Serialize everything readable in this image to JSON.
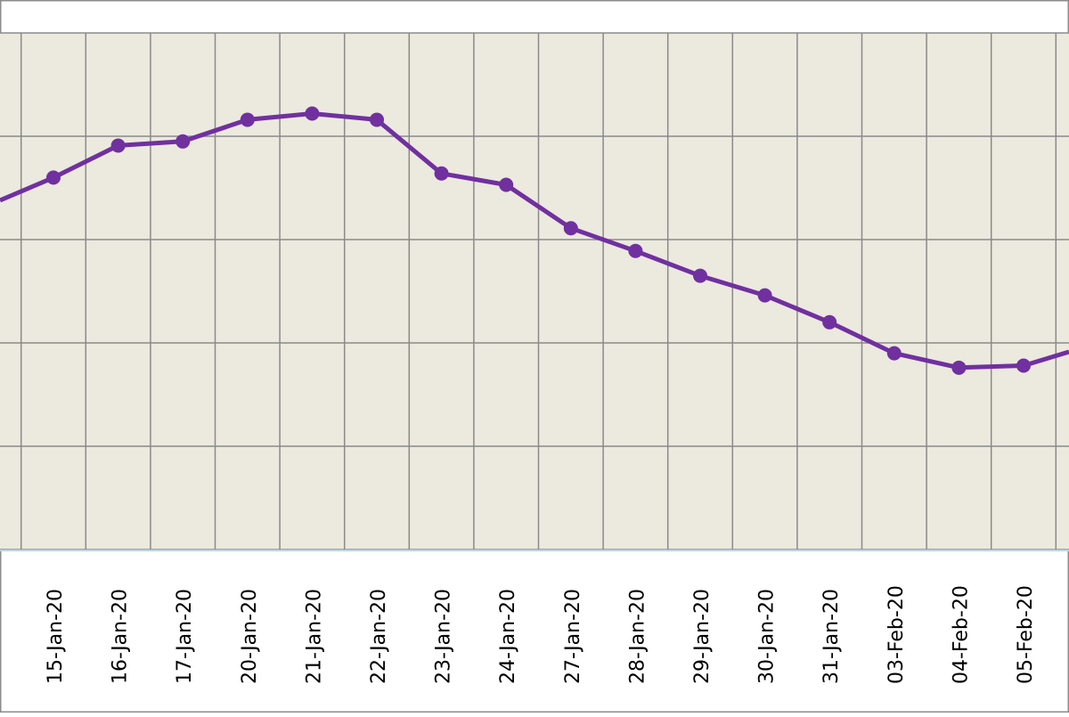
{
  "chart_data": {
    "type": "line",
    "title": "",
    "xlabel": "",
    "ylabel": "",
    "grid": true,
    "x_labels": [
      "15-Jan-20",
      "16-Jan-20",
      "17-Jan-20",
      "20-Jan-20",
      "21-Jan-20",
      "22-Jan-20",
      "23-Jan-20",
      "24-Jan-20",
      "27-Jan-20",
      "28-Jan-20",
      "29-Jan-20",
      "30-Jan-20",
      "31-Jan-20",
      "03-Feb-20",
      "04-Feb-20",
      "05-Feb-20"
    ],
    "series": [
      {
        "color": "#7030a0",
        "values": [
          3.6,
          3.91,
          3.95,
          4.16,
          4.22,
          4.16,
          3.64,
          3.53,
          3.11,
          2.89,
          2.65,
          2.46,
          2.2,
          1.9,
          1.76,
          1.78
        ]
      }
    ],
    "ylim": [
      0,
      5
    ]
  },
  "colors": {
    "plot_background": "#ece9df",
    "grid": "#8a8a8a",
    "line": "#7030a0",
    "axis_line": "#b8d4e8"
  }
}
